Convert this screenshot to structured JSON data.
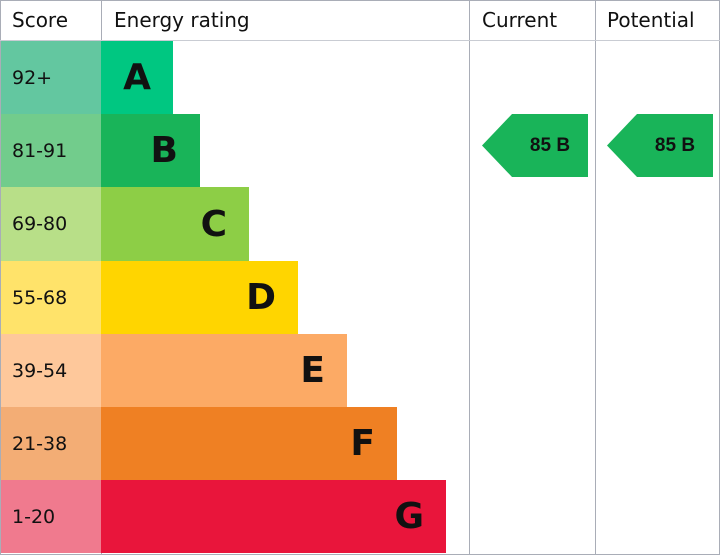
{
  "chart_data": {
    "type": "bar",
    "headers": {
      "score": "Score",
      "rating": "Energy rating",
      "current": "Current",
      "potential": "Potential"
    },
    "bands": [
      {
        "score": "92+",
        "letter": "A",
        "color": "#00c781",
        "score_color": "#63c7a0"
      },
      {
        "score": "81-91",
        "letter": "B",
        "color": "#19b459",
        "score_color": "#72cc8c"
      },
      {
        "score": "69-80",
        "letter": "C",
        "color": "#8dce46",
        "score_color": "#b8df88"
      },
      {
        "score": "55-68",
        "letter": "D",
        "color": "#ffd500",
        "score_color": "#ffe36a"
      },
      {
        "score": "39-54",
        "letter": "E",
        "color": "#fcaa65",
        "score_color": "#fec89b"
      },
      {
        "score": "21-38",
        "letter": "F",
        "color": "#ef8023",
        "score_color": "#f3ad75"
      },
      {
        "score": "1-20",
        "letter": "G",
        "color": "#e9153b",
        "score_color": "#f07a8e"
      }
    ],
    "current": {
      "label": "85 B",
      "value": 85,
      "band": "B",
      "color": "#19b459"
    },
    "potential": {
      "label": "85 B",
      "value": 85,
      "band": "B",
      "color": "#19b459"
    }
  }
}
